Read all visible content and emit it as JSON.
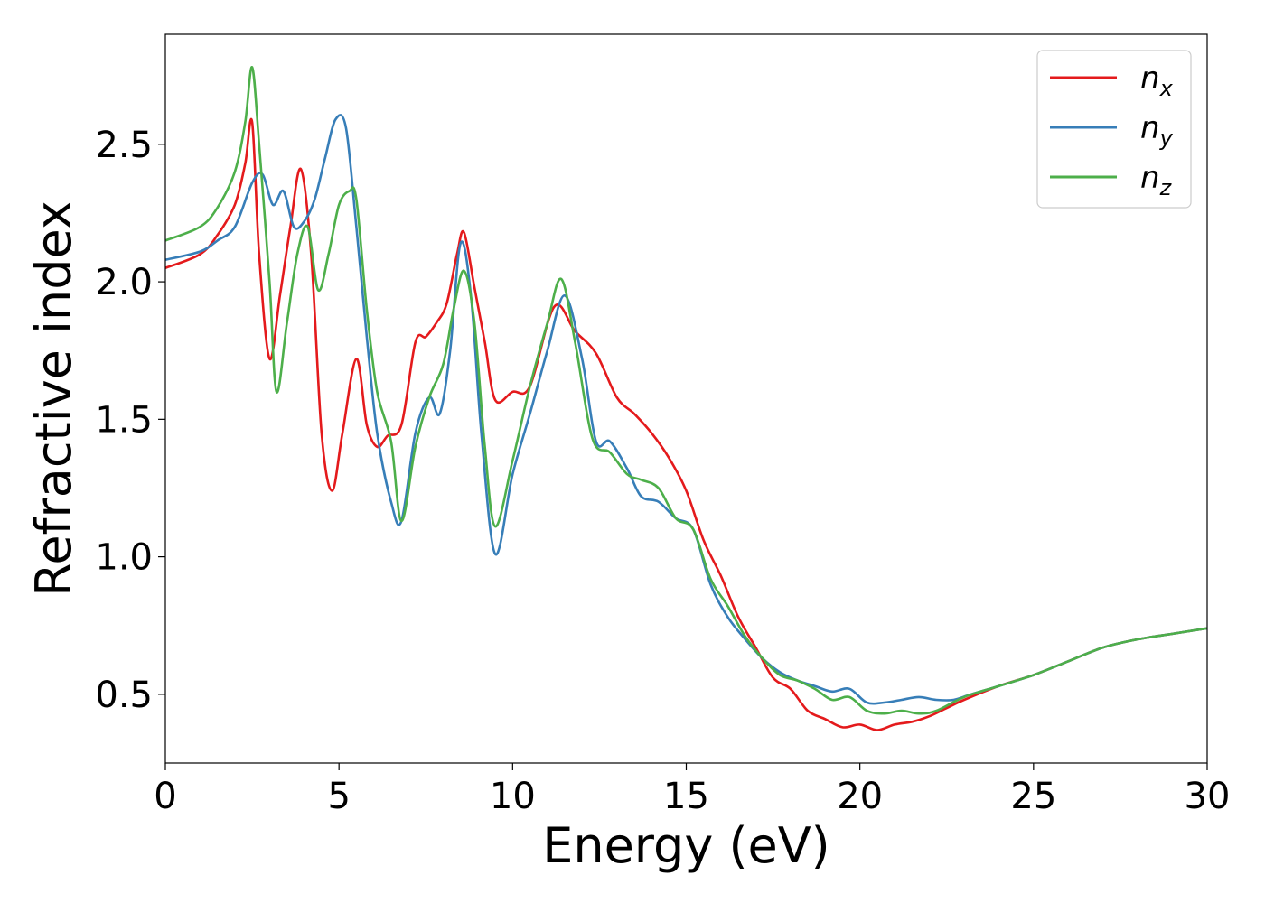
{
  "chart_data": {
    "type": "line",
    "xlabel": "Energy (eV)",
    "ylabel": "Refractive index",
    "xlim": [
      0,
      30
    ],
    "ylim": [
      0.25,
      2.9
    ],
    "xticks": [
      0,
      5,
      10,
      15,
      20,
      25,
      30
    ],
    "xtick_labels": [
      "0",
      "5",
      "10",
      "15",
      "20",
      "25",
      "30"
    ],
    "yticks": [
      0.5,
      1.0,
      1.5,
      2.0,
      2.5
    ],
    "ytick_labels": [
      "0.5",
      "1.0",
      "1.5",
      "2.0",
      "2.5"
    ],
    "grid": false,
    "legend_position": "top-right",
    "series": [
      {
        "name": "n_x",
        "label_main": "n",
        "label_sub": "x",
        "color": "#e41a1c",
        "x": [
          0,
          1,
          1.5,
          2,
          2.3,
          2.5,
          2.7,
          3.0,
          3.3,
          3.6,
          3.9,
          4.2,
          4.5,
          4.8,
          5.1,
          5.5,
          5.8,
          6.1,
          6.4,
          6.8,
          7.2,
          7.5,
          7.8,
          8.1,
          8.4,
          8.6,
          8.9,
          9.2,
          9.5,
          10.0,
          10.5,
          11.2,
          11.8,
          12.4,
          13.0,
          13.5,
          14.0,
          14.5,
          15.0,
          15.5,
          16.0,
          16.5,
          17.0,
          17.5,
          18.0,
          18.5,
          19.0,
          19.5,
          20.0,
          20.5,
          21.0,
          21.5,
          22.0,
          22.5,
          23.0,
          24.0,
          25.0,
          26.0,
          27.0,
          28.0,
          29.0,
          30.0
        ],
        "y": [
          2.05,
          2.1,
          2.17,
          2.28,
          2.43,
          2.58,
          2.1,
          1.72,
          1.95,
          2.2,
          2.41,
          2.1,
          1.45,
          1.24,
          1.45,
          1.72,
          1.48,
          1.4,
          1.44,
          1.48,
          1.78,
          1.8,
          1.85,
          1.92,
          2.1,
          2.18,
          1.98,
          1.78,
          1.57,
          1.6,
          1.62,
          1.91,
          1.82,
          1.74,
          1.58,
          1.52,
          1.45,
          1.36,
          1.24,
          1.06,
          0.93,
          0.78,
          0.67,
          0.56,
          0.52,
          0.44,
          0.41,
          0.38,
          0.39,
          0.37,
          0.39,
          0.4,
          0.42,
          0.45,
          0.48,
          0.53,
          0.57,
          0.62,
          0.67,
          0.7,
          0.72,
          0.74
        ]
      },
      {
        "name": "n_y",
        "label_main": "n",
        "label_sub": "y",
        "color": "#377eb8",
        "x": [
          0,
          1,
          1.5,
          2,
          2.5,
          2.8,
          3.1,
          3.4,
          3.7,
          4.0,
          4.3,
          4.6,
          4.9,
          5.2,
          5.5,
          5.8,
          6.1,
          6.5,
          6.8,
          7.2,
          7.6,
          7.9,
          8.2,
          8.5,
          8.8,
          9.1,
          9.5,
          10.0,
          10.5,
          11.0,
          11.5,
          12.0,
          12.4,
          12.8,
          13.3,
          13.7,
          14.2,
          14.7,
          15.2,
          15.7,
          16.2,
          16.7,
          17.2,
          17.7,
          18.2,
          18.7,
          19.2,
          19.7,
          20.2,
          20.7,
          21.2,
          21.7,
          22.2,
          22.7,
          23.2,
          24.0,
          25.0,
          26.0,
          27.0,
          28.0,
          29.0,
          30.0
        ],
        "y": [
          2.08,
          2.11,
          2.15,
          2.2,
          2.36,
          2.39,
          2.28,
          2.33,
          2.2,
          2.22,
          2.3,
          2.45,
          2.59,
          2.56,
          2.2,
          1.8,
          1.45,
          1.2,
          1.13,
          1.45,
          1.58,
          1.52,
          1.75,
          2.14,
          1.95,
          1.45,
          1.01,
          1.3,
          1.52,
          1.75,
          1.95,
          1.72,
          1.42,
          1.42,
          1.32,
          1.22,
          1.2,
          1.14,
          1.1,
          0.9,
          0.78,
          0.7,
          0.63,
          0.58,
          0.55,
          0.53,
          0.51,
          0.52,
          0.47,
          0.47,
          0.48,
          0.49,
          0.48,
          0.48,
          0.5,
          0.53,
          0.57,
          0.62,
          0.67,
          0.7,
          0.72,
          0.74
        ]
      },
      {
        "name": "n_z",
        "label_main": "n",
        "label_sub": "z",
        "color": "#4daf4a",
        "x": [
          0,
          1,
          1.5,
          2,
          2.3,
          2.5,
          2.7,
          3.0,
          3.2,
          3.5,
          3.8,
          4.1,
          4.4,
          4.7,
          5.0,
          5.3,
          5.5,
          5.8,
          6.1,
          6.5,
          6.8,
          7.2,
          7.6,
          8.0,
          8.3,
          8.6,
          8.9,
          9.2,
          9.5,
          10.0,
          10.5,
          11.0,
          11.4,
          11.8,
          12.3,
          12.8,
          13.3,
          13.7,
          14.2,
          14.7,
          15.2,
          15.7,
          16.2,
          16.7,
          17.2,
          17.7,
          18.2,
          18.7,
          19.2,
          19.7,
          20.2,
          20.7,
          21.2,
          21.7,
          22.2,
          23.0,
          24.0,
          25.0,
          26.0,
          27.0,
          28.0,
          29.0,
          30.0
        ],
        "y": [
          2.15,
          2.2,
          2.27,
          2.4,
          2.58,
          2.78,
          2.5,
          2.0,
          1.6,
          1.85,
          2.1,
          2.2,
          1.97,
          2.1,
          2.28,
          2.33,
          2.3,
          1.9,
          1.6,
          1.42,
          1.13,
          1.4,
          1.58,
          1.7,
          1.9,
          2.04,
          1.85,
          1.4,
          1.11,
          1.35,
          1.62,
          1.85,
          2.01,
          1.78,
          1.43,
          1.38,
          1.3,
          1.28,
          1.25,
          1.14,
          1.1,
          0.92,
          0.82,
          0.71,
          0.63,
          0.57,
          0.55,
          0.52,
          0.48,
          0.49,
          0.44,
          0.43,
          0.44,
          0.43,
          0.44,
          0.49,
          0.53,
          0.57,
          0.62,
          0.67,
          0.7,
          0.72,
          0.74
        ]
      }
    ]
  }
}
